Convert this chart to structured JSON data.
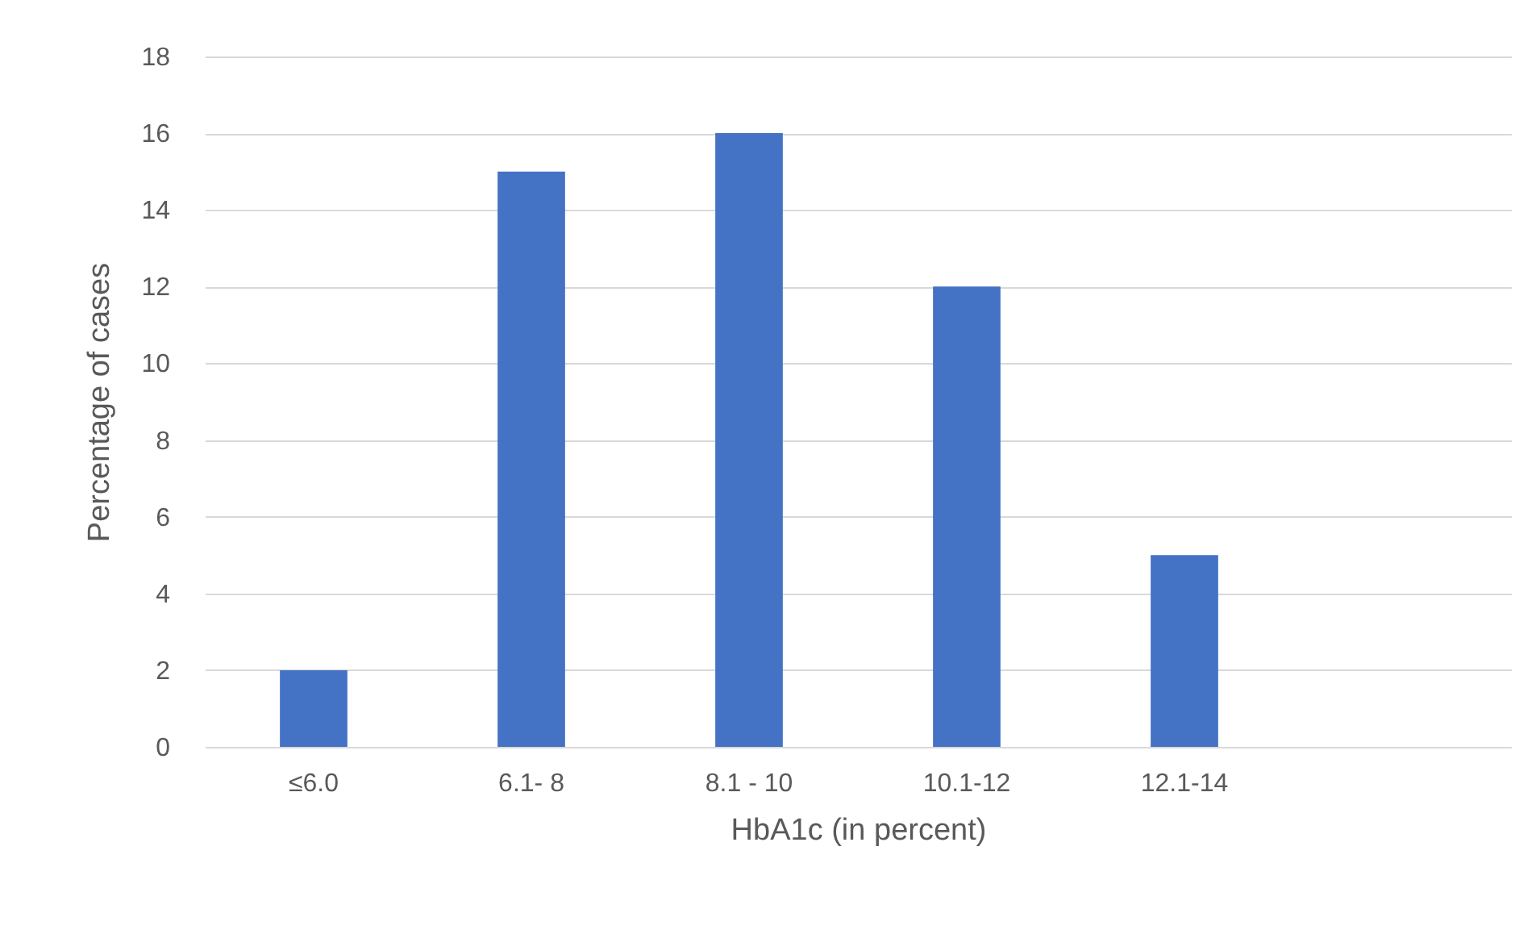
{
  "chart_data": {
    "type": "bar",
    "xlabel": "HbA1c (in percent)",
    "ylabel": "Percentage of cases",
    "categories": [
      "≤6.0",
      "6.1- 8",
      "8.1 - 10",
      "10.1-12",
      "12.1-14",
      null
    ],
    "values": [
      2,
      15,
      16,
      12,
      5,
      null
    ],
    "color": "#4472c4",
    "ylim": [
      0,
      18
    ],
    "yticks": [
      0,
      2,
      4,
      6,
      8,
      10,
      12,
      14,
      16,
      18
    ],
    "grid": "y",
    "legend": false
  }
}
